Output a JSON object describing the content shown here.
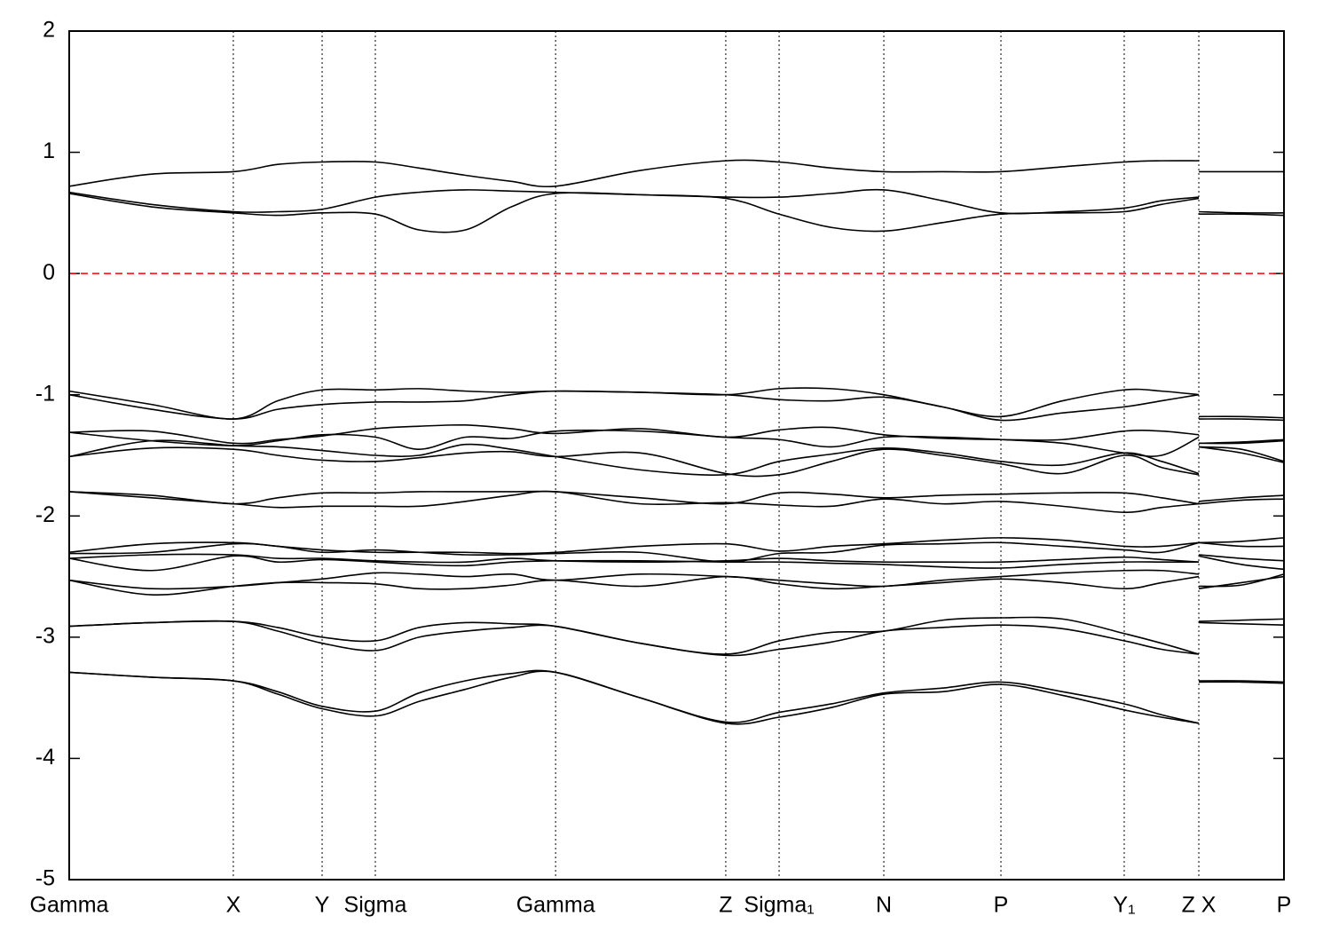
{
  "chart_data": {
    "type": "line",
    "x": [
      0,
      0.0676,
      0.1351,
      0.1717,
      0.2082,
      0.252,
      0.288,
      0.3262,
      0.364,
      0.4004,
      0.47,
      0.5405,
      0.5844,
      0.6275,
      0.6706,
      0.7188,
      0.767,
      0.8178,
      0.8685,
      0.8992,
      0.9299,
      0.9299,
      0.9299,
      0.965,
      1.0
    ],
    "xlim": [
      0,
      1
    ],
    "ylim": [
      -5,
      2
    ],
    "yticks": [
      -5,
      -4,
      -3,
      -2,
      -1,
      0,
      1,
      2
    ],
    "xticks": [
      {
        "value": 0,
        "label": "Gamma"
      },
      {
        "value": 0.1351,
        "label": "X"
      },
      {
        "value": 0.2082,
        "label": "Y"
      },
      {
        "value": 0.252,
        "label": "Sigma"
      },
      {
        "value": 0.4004,
        "label": "Gamma"
      },
      {
        "value": 0.5405,
        "label": "Z"
      },
      {
        "value": 0.5844,
        "label": "Sigma₁"
      },
      {
        "value": 0.6706,
        "label": "N"
      },
      {
        "value": 0.767,
        "label": "P"
      },
      {
        "value": 0.8685,
        "label": "Y₁"
      },
      {
        "value": 0.9299,
        "label": "Z X"
      },
      {
        "value": 1.0,
        "label": "P"
      }
    ],
    "xgrid": true,
    "hline": {
      "value": 0,
      "color": "#ff0000",
      "style": "dashed"
    },
    "series": [
      {
        "color": "#000000",
        "values": [
          0.72,
          0.82,
          0.84,
          0.9,
          0.92,
          0.92,
          0.87,
          0.81,
          0.76,
          0.72,
          0.85,
          0.93,
          0.92,
          0.87,
          0.84,
          0.84,
          0.84,
          0.88,
          0.92,
          0.93,
          0.93,
          null,
          0.84,
          0.84,
          0.84
        ]
      },
      {
        "color": "#000000",
        "values": [
          0.67,
          0.57,
          0.51,
          0.51,
          0.53,
          0.63,
          0.67,
          0.69,
          0.68,
          0.67,
          0.65,
          0.63,
          0.63,
          0.66,
          0.69,
          0.6,
          0.5,
          0.51,
          0.54,
          0.6,
          0.63,
          null,
          0.51,
          0.5,
          0.5
        ]
      },
      {
        "color": "#000000",
        "values": [
          0.66,
          0.55,
          0.5,
          0.48,
          0.5,
          0.49,
          0.36,
          0.36,
          0.55,
          0.66,
          0.65,
          0.62,
          0.49,
          0.38,
          0.35,
          0.42,
          0.49,
          0.5,
          0.51,
          0.57,
          0.62,
          null,
          0.49,
          0.49,
          0.48
        ]
      },
      {
        "color": "#000000",
        "values": [
          -0.97,
          -1.08,
          -1.2,
          -1.05,
          -0.96,
          -0.96,
          -0.95,
          -0.97,
          -0.98,
          -0.97,
          -0.98,
          -1.0,
          -0.95,
          -0.95,
          -1.0,
          -1.1,
          -1.18,
          -1.05,
          -0.96,
          -0.97,
          -1.0,
          null,
          -1.18,
          -1.18,
          -1.19
        ]
      },
      {
        "color": "#000000",
        "values": [
          -1.0,
          -1.12,
          -1.2,
          -1.12,
          -1.08,
          -1.06,
          -1.06,
          -1.05,
          -1.0,
          -0.97,
          -0.98,
          -1.0,
          -1.04,
          -1.05,
          -1.02,
          -1.1,
          -1.21,
          -1.15,
          -1.1,
          -1.05,
          -1.0,
          null,
          -1.2,
          -1.2,
          -1.21
        ]
      },
      {
        "color": "#000000",
        "values": [
          -1.31,
          -1.3,
          -1.4,
          -1.37,
          -1.34,
          -1.28,
          -1.26,
          -1.25,
          -1.28,
          -1.32,
          -1.28,
          -1.35,
          -1.29,
          -1.27,
          -1.33,
          -1.36,
          -1.37,
          -1.37,
          -1.3,
          -1.3,
          -1.33,
          null,
          -1.4,
          -1.39,
          -1.37
        ]
      },
      {
        "color": "#000000",
        "values": [
          -1.31,
          -1.38,
          -1.42,
          -1.38,
          -1.33,
          -1.35,
          -1.45,
          -1.35,
          -1.36,
          -1.3,
          -1.3,
          -1.35,
          -1.37,
          -1.43,
          -1.35,
          -1.35,
          -1.37,
          -1.4,
          -1.48,
          -1.5,
          -1.35,
          null,
          -1.4,
          -1.4,
          -1.38
        ]
      },
      {
        "color": "#000000",
        "values": [
          -1.51,
          -1.38,
          -1.42,
          -1.43,
          -1.46,
          -1.5,
          -1.5,
          -1.41,
          -1.45,
          -1.51,
          -1.62,
          -1.66,
          -1.55,
          -1.49,
          -1.44,
          -1.48,
          -1.55,
          -1.58,
          -1.48,
          -1.55,
          -1.65,
          null,
          -1.43,
          -1.45,
          -1.55
        ]
      },
      {
        "color": "#000000",
        "values": [
          -1.51,
          -1.44,
          -1.45,
          -1.5,
          -1.54,
          -1.55,
          -1.52,
          -1.48,
          -1.47,
          -1.51,
          -1.48,
          -1.65,
          -1.66,
          -1.55,
          -1.45,
          -1.5,
          -1.57,
          -1.65,
          -1.5,
          -1.6,
          -1.66,
          null,
          -1.43,
          -1.48,
          -1.56
        ]
      },
      {
        "color": "#000000",
        "values": [
          -1.8,
          -1.83,
          -1.9,
          -1.85,
          -1.81,
          -1.81,
          -1.8,
          -1.8,
          -1.8,
          -1.8,
          -1.85,
          -1.9,
          -1.81,
          -1.82,
          -1.85,
          -1.83,
          -1.82,
          -1.81,
          -1.81,
          -1.85,
          -1.9,
          null,
          -1.88,
          -1.85,
          -1.83
        ]
      },
      {
        "color": "#000000",
        "values": [
          -1.8,
          -1.85,
          -1.9,
          -1.93,
          -1.92,
          -1.92,
          -1.92,
          -1.88,
          -1.83,
          -1.8,
          -1.9,
          -1.89,
          -1.91,
          -1.92,
          -1.86,
          -1.9,
          -1.88,
          -1.92,
          -1.97,
          -1.93,
          -1.9,
          null,
          -1.9,
          -1.87,
          -1.86
        ]
      },
      {
        "color": "#000000",
        "values": [
          -2.3,
          -2.23,
          -2.22,
          -2.25,
          -2.28,
          -2.3,
          -2.3,
          -2.3,
          -2.31,
          -2.3,
          -2.25,
          -2.23,
          -2.29,
          -2.25,
          -2.23,
          -2.2,
          -2.18,
          -2.2,
          -2.25,
          -2.25,
          -2.22,
          null,
          -2.22,
          -2.21,
          -2.18
        ]
      },
      {
        "color": "#000000",
        "values": [
          -2.31,
          -2.3,
          -2.23,
          -2.25,
          -2.3,
          -2.28,
          -2.3,
          -2.32,
          -2.32,
          -2.31,
          -2.3,
          -2.38,
          -2.31,
          -2.3,
          -2.24,
          -2.23,
          -2.22,
          -2.25,
          -2.28,
          -2.3,
          -2.22,
          null,
          -2.22,
          -2.25,
          -2.25
        ]
      },
      {
        "color": "#000000",
        "values": [
          -2.35,
          -2.32,
          -2.32,
          -2.35,
          -2.35,
          -2.37,
          -2.38,
          -2.38,
          -2.35,
          -2.37,
          -2.38,
          -2.37,
          -2.35,
          -2.37,
          -2.38,
          -2.38,
          -2.38,
          -2.36,
          -2.34,
          -2.36,
          -2.38,
          null,
          -2.32,
          -2.35,
          -2.37
        ]
      },
      {
        "color": "#000000",
        "values": [
          -2.35,
          -2.45,
          -2.33,
          -2.38,
          -2.36,
          -2.38,
          -2.4,
          -2.41,
          -2.38,
          -2.37,
          -2.37,
          -2.38,
          -2.38,
          -2.39,
          -2.4,
          -2.42,
          -2.43,
          -2.4,
          -2.38,
          -2.38,
          -2.38,
          null,
          -2.33,
          -2.4,
          -2.44
        ]
      },
      {
        "color": "#000000",
        "values": [
          -2.53,
          -2.6,
          -2.58,
          -2.55,
          -2.52,
          -2.47,
          -2.48,
          -2.5,
          -2.48,
          -2.53,
          -2.48,
          -2.5,
          -2.53,
          -2.56,
          -2.58,
          -2.53,
          -2.5,
          -2.47,
          -2.45,
          -2.45,
          -2.48,
          null,
          -2.58,
          -2.57,
          -2.48
        ]
      },
      {
        "color": "#000000",
        "values": [
          -2.53,
          -2.65,
          -2.58,
          -2.55,
          -2.55,
          -2.56,
          -2.6,
          -2.6,
          -2.57,
          -2.53,
          -2.58,
          -2.5,
          -2.56,
          -2.6,
          -2.58,
          -2.55,
          -2.52,
          -2.55,
          -2.6,
          -2.55,
          -2.5,
          null,
          -2.6,
          -2.55,
          -2.5
        ]
      },
      {
        "color": "#000000",
        "values": [
          -2.91,
          -2.88,
          -2.87,
          -2.92,
          -3.0,
          -3.03,
          -2.92,
          -2.88,
          -2.89,
          -2.91,
          -3.05,
          -3.14,
          -3.03,
          -2.96,
          -2.95,
          -2.86,
          -2.84,
          -2.85,
          -2.97,
          -3.05,
          -3.14,
          null,
          -2.87,
          -2.86,
          -2.85
        ]
      },
      {
        "color": "#000000",
        "values": [
          -2.91,
          -2.88,
          -2.87,
          -2.95,
          -3.05,
          -3.11,
          -3.0,
          -2.95,
          -2.92,
          -2.91,
          -3.05,
          -3.15,
          -3.1,
          -3.04,
          -2.95,
          -2.92,
          -2.9,
          -2.93,
          -3.03,
          -3.1,
          -3.14,
          null,
          -2.88,
          -2.89,
          -2.9
        ]
      },
      {
        "color": "#000000",
        "values": [
          -3.29,
          -3.33,
          -3.36,
          -3.45,
          -3.57,
          -3.61,
          -3.46,
          -3.36,
          -3.3,
          -3.29,
          -3.5,
          -3.7,
          -3.62,
          -3.55,
          -3.46,
          -3.42,
          -3.37,
          -3.45,
          -3.55,
          -3.64,
          -3.71,
          null,
          -3.36,
          -3.36,
          -3.37
        ]
      },
      {
        "color": "#000000",
        "values": [
          -3.29,
          -3.33,
          -3.36,
          -3.47,
          -3.59,
          -3.65,
          -3.53,
          -3.43,
          -3.33,
          -3.29,
          -3.5,
          -3.71,
          -3.66,
          -3.58,
          -3.47,
          -3.45,
          -3.39,
          -3.48,
          -3.6,
          -3.66,
          -3.71,
          null,
          -3.37,
          -3.37,
          -3.38
        ]
      }
    ]
  }
}
